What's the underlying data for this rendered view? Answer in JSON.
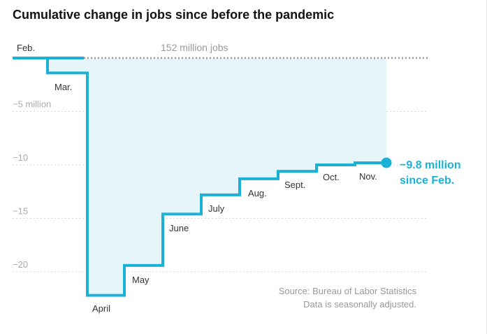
{
  "chart_data": {
    "type": "line",
    "title": "Cumulative change in jobs since before the pandemic",
    "reference_label": "152 million jobs",
    "y_tick_labels": [
      "−5 million",
      "−10",
      "−15",
      "−20"
    ],
    "y_ticks": [
      -5,
      -10,
      -15,
      -20
    ],
    "ylim": [
      -24,
      0.8
    ],
    "grid": true,
    "step": true,
    "series": [
      {
        "color": "#1bb1d6",
        "fill_color": "#e5f5fa",
        "x": [
          "Feb.",
          "Mar.",
          "April",
          "May",
          "June",
          "July",
          "Aug.",
          "Sept.",
          "Oct.",
          "Nov."
        ],
        "values": [
          0,
          -1.4,
          -22.2,
          -19.4,
          -14.6,
          -12.8,
          -11.3,
          -10.6,
          -10.0,
          -9.8
        ]
      }
    ],
    "end_label": [
      "−9.8 million",
      "since Feb."
    ],
    "source": [
      "Source: Bureau of Labor Statistics",
      "Data is seasonally adjusted."
    ]
  }
}
